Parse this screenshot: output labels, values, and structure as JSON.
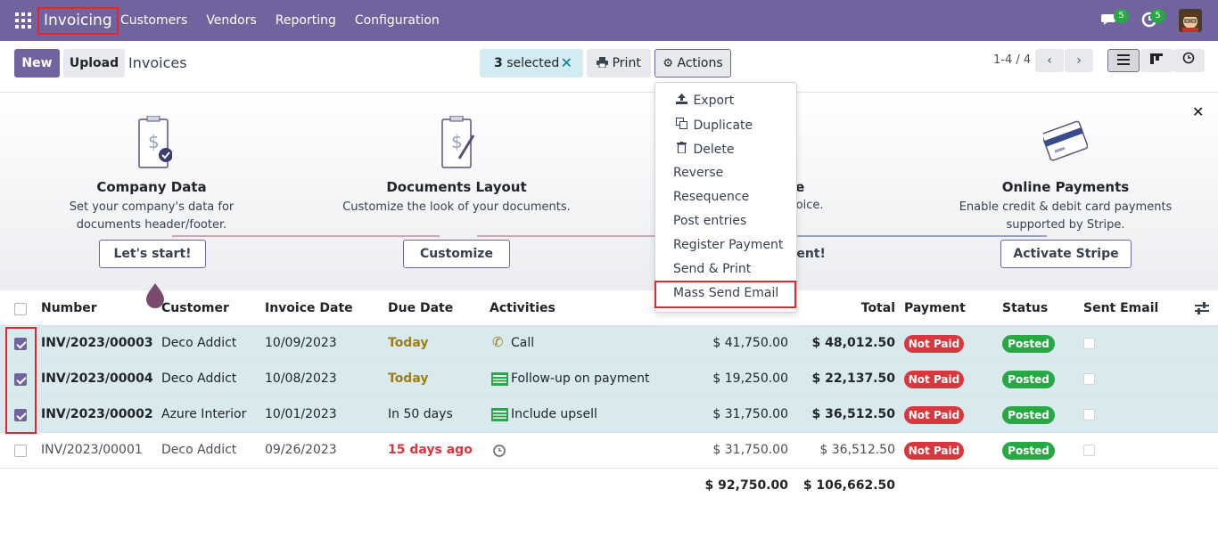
{
  "nav": {
    "app_title": "Invoicing",
    "menu": [
      "Customers",
      "Vendors",
      "Reporting",
      "Configuration"
    ],
    "messages_count": "5",
    "activities_count": "5"
  },
  "control": {
    "new_label": "New",
    "upload_label": "Upload",
    "page_title": "Invoices",
    "selected_count": "3",
    "selected_text": "selected",
    "print_label": "Print",
    "actions_label": "Actions",
    "pager": "1-4 / 4"
  },
  "actions_menu": {
    "items": [
      "Export",
      "Duplicate",
      "Delete",
      "Reverse",
      "Resequence",
      "Post entries",
      "Register Payment",
      "Send & Print",
      "Mass Send Email"
    ]
  },
  "banner": {
    "steps": [
      {
        "title": "Company Data",
        "desc": "Set your company's data for documents header/footer.",
        "button": "Let's start!"
      },
      {
        "title": "Documents Layout",
        "desc": "Customize the look of your documents.",
        "button": "Customize"
      },
      {
        "title_tail": "te",
        "desc_tail": "voice.",
        "button_tail": "sent!"
      },
      {
        "title": "Online Payments",
        "desc": "Enable credit & debit card payments supported by Stripe.",
        "button": "Activate Stripe"
      }
    ]
  },
  "table": {
    "headers": [
      "Number",
      "Customer",
      "Invoice Date",
      "Due Date",
      "Activities",
      "Total",
      "Payment",
      "Status",
      "Sent Email"
    ],
    "rows": [
      {
        "number": "INV/2023/00003",
        "customer": "Deco Addict",
        "invoice_date": "10/09/2023",
        "due": "Today",
        "activity": "Call",
        "untaxed": "$ 41,750.00",
        "total": "$ 48,012.50",
        "payment": "Not Paid",
        "status": "Posted",
        "selected": true
      },
      {
        "number": "INV/2023/00004",
        "customer": "Deco Addict",
        "invoice_date": "10/08/2023",
        "due": "Today",
        "activity": "Follow-up on payment",
        "untaxed": "$ 19,250.00",
        "total": "$ 22,137.50",
        "payment": "Not Paid",
        "status": "Posted",
        "selected": true
      },
      {
        "number": "INV/2023/00002",
        "customer": "Azure Interior",
        "invoice_date": "10/01/2023",
        "due": "In 50 days",
        "activity": "Include upsell",
        "untaxed": "$ 31,750.00",
        "total": "$ 36,512.50",
        "payment": "Not Paid",
        "status": "Posted",
        "selected": true
      },
      {
        "number": "INV/2023/00001",
        "customer": "Deco Addict",
        "invoice_date": "09/26/2023",
        "due": "15 days ago",
        "activity": "",
        "untaxed": "$ 31,750.00",
        "total": "$ 36,512.50",
        "payment": "Not Paid",
        "status": "Posted",
        "selected": false
      }
    ],
    "sum_untaxed": "$ 92,750.00",
    "sum_total": "$ 106,662.50"
  },
  "colors": {
    "brand": "#71639e",
    "highlight": "#e0262e",
    "selected_row": "#d8eaed",
    "today": "#a07c14",
    "overdue": "#d9363e"
  }
}
